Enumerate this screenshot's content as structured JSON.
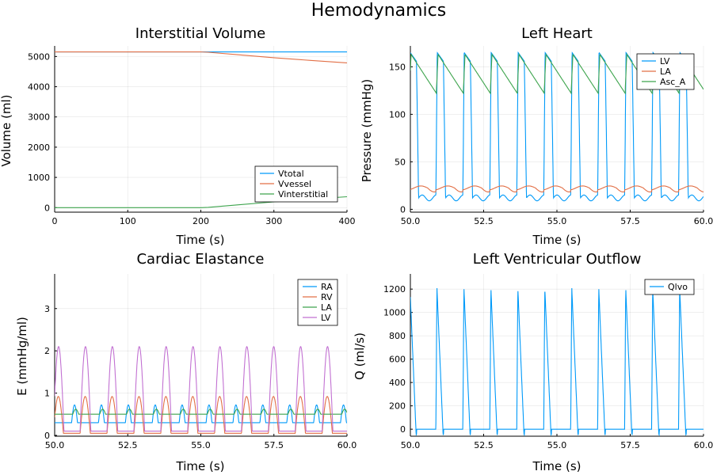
{
  "suptitle": "Hemodynamics",
  "colors": {
    "c1": "#009af9",
    "c2": "#e26f46",
    "c3": "#3da44d",
    "c4": "#c271d2"
  },
  "chart_data": [
    {
      "type": "line",
      "title": "Interstitial Volume",
      "xlabel": "Time (s)",
      "ylabel": "Volume (ml)",
      "xlim": [
        0,
        400
      ],
      "ylim": [
        -150,
        5350
      ],
      "xticks": [
        0,
        100,
        200,
        300,
        400
      ],
      "xtick_labels": [
        "0",
        "100",
        "200",
        "300",
        "400"
      ],
      "yticks": [
        0,
        1000,
        2000,
        3000,
        4000,
        5000
      ],
      "ytick_labels": [
        "0",
        "1000",
        "2000",
        "3000",
        "4000",
        "5000"
      ],
      "grid": true,
      "legend": "bottom-right",
      "series": [
        {
          "name": "Vtotal",
          "color": "#009af9",
          "x": [
            0,
            400
          ],
          "y": [
            5150,
            5150
          ]
        },
        {
          "name": "Vvessel",
          "color": "#e26f46",
          "x": [
            0,
            200,
            210,
            250,
            300,
            350,
            400
          ],
          "y": [
            5150,
            5150,
            5140,
            5060,
            4960,
            4870,
            4790
          ]
        },
        {
          "name": "Vinterstitial",
          "color": "#3da44d",
          "x": [
            0,
            200,
            210,
            250,
            300,
            350,
            400
          ],
          "y": [
            0,
            0,
            10,
            90,
            190,
            280,
            360
          ]
        }
      ]
    },
    {
      "type": "line",
      "title": "Left Heart",
      "xlabel": "Time (s)",
      "ylabel": "Pressure (mmHg)",
      "xlim": [
        50,
        60
      ],
      "ylim": [
        -3,
        172
      ],
      "xticks": [
        50,
        52.5,
        55,
        57.5,
        60
      ],
      "xtick_labels": [
        "50.0",
        "52.5",
        "55.0",
        "57.5",
        "60.0"
      ],
      "yticks": [
        0,
        50,
        100,
        150
      ],
      "ytick_labels": [
        "0",
        "50",
        "100",
        "150"
      ],
      "grid": true,
      "legend": "top-right",
      "period_s": 0.92,
      "series": [
        {
          "name": "LV",
          "color": "#009af9",
          "min": 12,
          "max": 165
        },
        {
          "name": "LA",
          "color": "#e26f46",
          "min": 19,
          "max": 26
        },
        {
          "name": "Asc_A",
          "color": "#3da44d",
          "min": 122,
          "max": 163
        }
      ]
    },
    {
      "type": "line",
      "title": "Cardiac Elastance",
      "xlabel": "Time (s)",
      "ylabel": "E (mmHg/ml)",
      "xlim": [
        50,
        60
      ],
      "ylim": [
        -0.02,
        3.82
      ],
      "xticks": [
        50,
        52.5,
        55,
        57.5,
        60
      ],
      "xtick_labels": [
        "50.0",
        "52.5",
        "55.0",
        "57.5",
        "60.0"
      ],
      "yticks": [
        0,
        1,
        2,
        3
      ],
      "ytick_labels": [
        "0",
        "1",
        "2",
        "3"
      ],
      "grid": true,
      "legend": "top-right",
      "period_s": 0.92,
      "series": [
        {
          "name": "RA",
          "color": "#009af9",
          "min": 0.3,
          "max": 0.72
        },
        {
          "name": "RV",
          "color": "#e26f46",
          "min": 0.05,
          "max": 0.92
        },
        {
          "name": "LA",
          "color": "#3da44d",
          "min": 0.5,
          "max": 0.62
        },
        {
          "name": "LV",
          "color": "#c271d2",
          "min": 0.1,
          "max": 2.1
        }
      ]
    },
    {
      "type": "line",
      "title": "Left Ventricular Outflow",
      "xlabel": "Time (s)",
      "ylabel": "Q (ml/s)",
      "xlim": [
        50,
        60
      ],
      "ylim": [
        -60,
        1330
      ],
      "xticks": [
        50,
        52.5,
        55,
        57.5,
        60
      ],
      "xtick_labels": [
        "50.0",
        "52.5",
        "55.0",
        "57.5",
        "60.0"
      ],
      "yticks": [
        0,
        200,
        400,
        600,
        800,
        1000,
        1200
      ],
      "ytick_labels": [
        "0",
        "200",
        "400",
        "600",
        "800",
        "1000",
        "1200"
      ],
      "grid": true,
      "legend": "top-right",
      "period_s": 0.92,
      "series": [
        {
          "name": "Qlvo",
          "color": "#009af9",
          "min": -50,
          "max": 1210
        }
      ]
    }
  ]
}
